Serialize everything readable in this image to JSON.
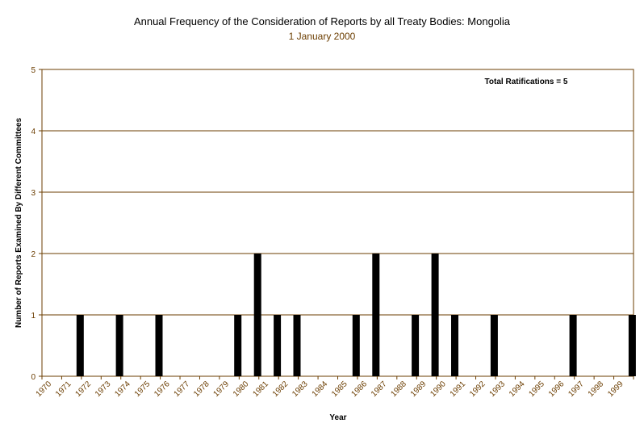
{
  "chart_data": {
    "type": "bar",
    "title": "Annual Frequency of the Consideration of Reports by all Treaty Bodies: Mongolia",
    "subtitle": "1 January 2000",
    "xlabel": "Year",
    "ylabel": "Number of Reports Examined By Different Committees",
    "annotation": "Total Ratifications = 5",
    "ylim": [
      0,
      5
    ],
    "yticks": [
      "0",
      "1",
      "2",
      "3",
      "4",
      "5"
    ],
    "grid": true,
    "categories": [
      "1970",
      "1971",
      "1972",
      "1973",
      "1974",
      "1975",
      "1976",
      "1977",
      "1978",
      "1979",
      "1980",
      "1981",
      "1982",
      "1983",
      "1984",
      "1985",
      "1986",
      "1987",
      "1988",
      "1989",
      "1990",
      "1991",
      "1992",
      "1993",
      "1994",
      "1995",
      "1996",
      "1997",
      "1998",
      "1999"
    ],
    "values": [
      0,
      1,
      0,
      1,
      0,
      1,
      0,
      0,
      0,
      1,
      2,
      1,
      1,
      0,
      0,
      1,
      2,
      0,
      1,
      2,
      1,
      0,
      1,
      0,
      0,
      0,
      1,
      0,
      0,
      1
    ],
    "colors": {
      "bar": "#000000",
      "grid": "#6b3d00",
      "text": "#6b3d00"
    }
  }
}
